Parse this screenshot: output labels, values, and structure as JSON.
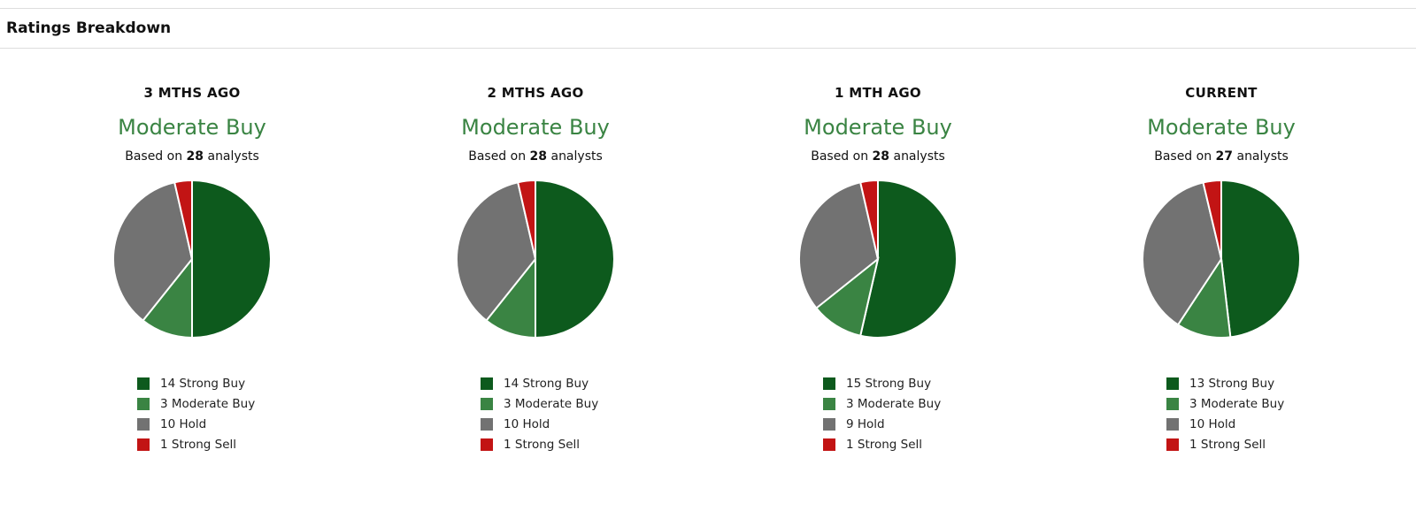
{
  "header": {
    "title": "Ratings Breakdown"
  },
  "colors": {
    "strong_buy": "#0d5a1d",
    "moderate_buy": "#3a8443",
    "hold": "#727272",
    "strong_sell": "#c21414",
    "consensus": "#3a8443"
  },
  "chart_data": [
    {
      "type": "pie",
      "title": "3 MTHS AGO",
      "consensus": "Moderate Buy",
      "based_prefix": "Based on",
      "analysts": "28",
      "based_suffix": "analysts",
      "categories": [
        "Strong Buy",
        "Moderate Buy",
        "Hold",
        "Strong Sell"
      ],
      "values": [
        14,
        3,
        10,
        1
      ],
      "labels": [
        "14 Strong Buy",
        "3 Moderate Buy",
        "10 Hold",
        "1 Strong Sell"
      ]
    },
    {
      "type": "pie",
      "title": "2 MTHS AGO",
      "consensus": "Moderate Buy",
      "based_prefix": "Based on",
      "analysts": "28",
      "based_suffix": "analysts",
      "categories": [
        "Strong Buy",
        "Moderate Buy",
        "Hold",
        "Strong Sell"
      ],
      "values": [
        14,
        3,
        10,
        1
      ],
      "labels": [
        "14 Strong Buy",
        "3 Moderate Buy",
        "10 Hold",
        "1 Strong Sell"
      ]
    },
    {
      "type": "pie",
      "title": "1 MTH AGO",
      "consensus": "Moderate Buy",
      "based_prefix": "Based on",
      "analysts": "28",
      "based_suffix": "analysts",
      "categories": [
        "Strong Buy",
        "Moderate Buy",
        "Hold",
        "Strong Sell"
      ],
      "values": [
        15,
        3,
        9,
        1
      ],
      "labels": [
        "15 Strong Buy",
        "3 Moderate Buy",
        "9 Hold",
        "1 Strong Sell"
      ]
    },
    {
      "type": "pie",
      "title": "CURRENT",
      "consensus": "Moderate Buy",
      "based_prefix": "Based on",
      "analysts": "27",
      "based_suffix": "analysts",
      "categories": [
        "Strong Buy",
        "Moderate Buy",
        "Hold",
        "Strong Sell"
      ],
      "values": [
        13,
        3,
        10,
        1
      ],
      "labels": [
        "13 Strong Buy",
        "3 Moderate Buy",
        "10 Hold",
        "1 Strong Sell"
      ]
    }
  ]
}
